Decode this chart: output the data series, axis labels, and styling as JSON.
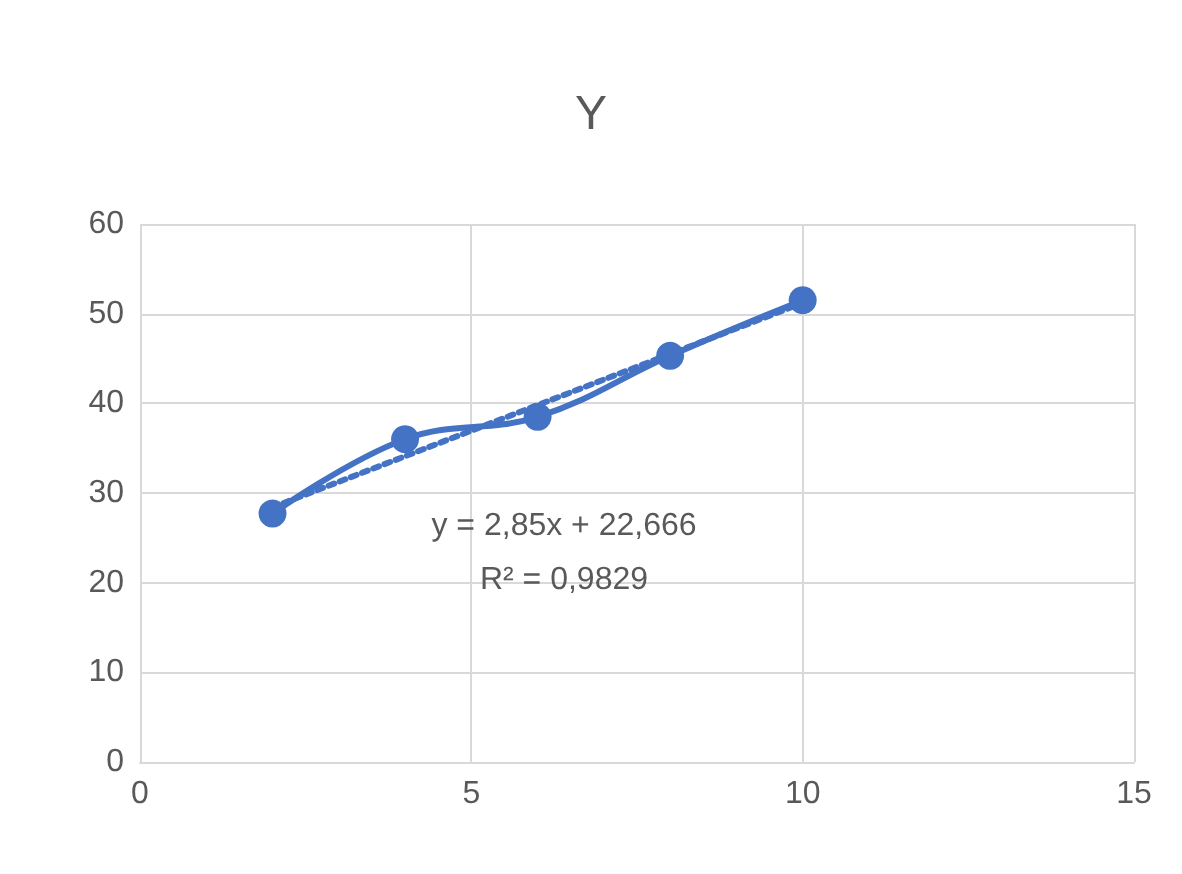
{
  "chart_data": {
    "type": "line",
    "title": "Y",
    "xlim": [
      0,
      15
    ],
    "xticks": [
      0,
      5,
      10,
      15
    ],
    "ylim": [
      0,
      60
    ],
    "yticks": [
      0,
      10,
      20,
      30,
      40,
      50,
      60
    ],
    "grid": true,
    "series": [
      {
        "color": "#4472c4",
        "x": [
          2,
          4,
          6,
          8,
          10
        ],
        "values": [
          27.7,
          36,
          38.5,
          45.3,
          51.5
        ],
        "marker": "circle",
        "line_style": "solid"
      },
      {
        "color": "#4472c4",
        "x": [
          2,
          10
        ],
        "values": [
          28.4,
          51.2
        ],
        "marker": "none",
        "line_style": "dotted"
      }
    ],
    "annotations": [
      "y = 2,85x + 22,666",
      "R² = 0,9829"
    ]
  }
}
